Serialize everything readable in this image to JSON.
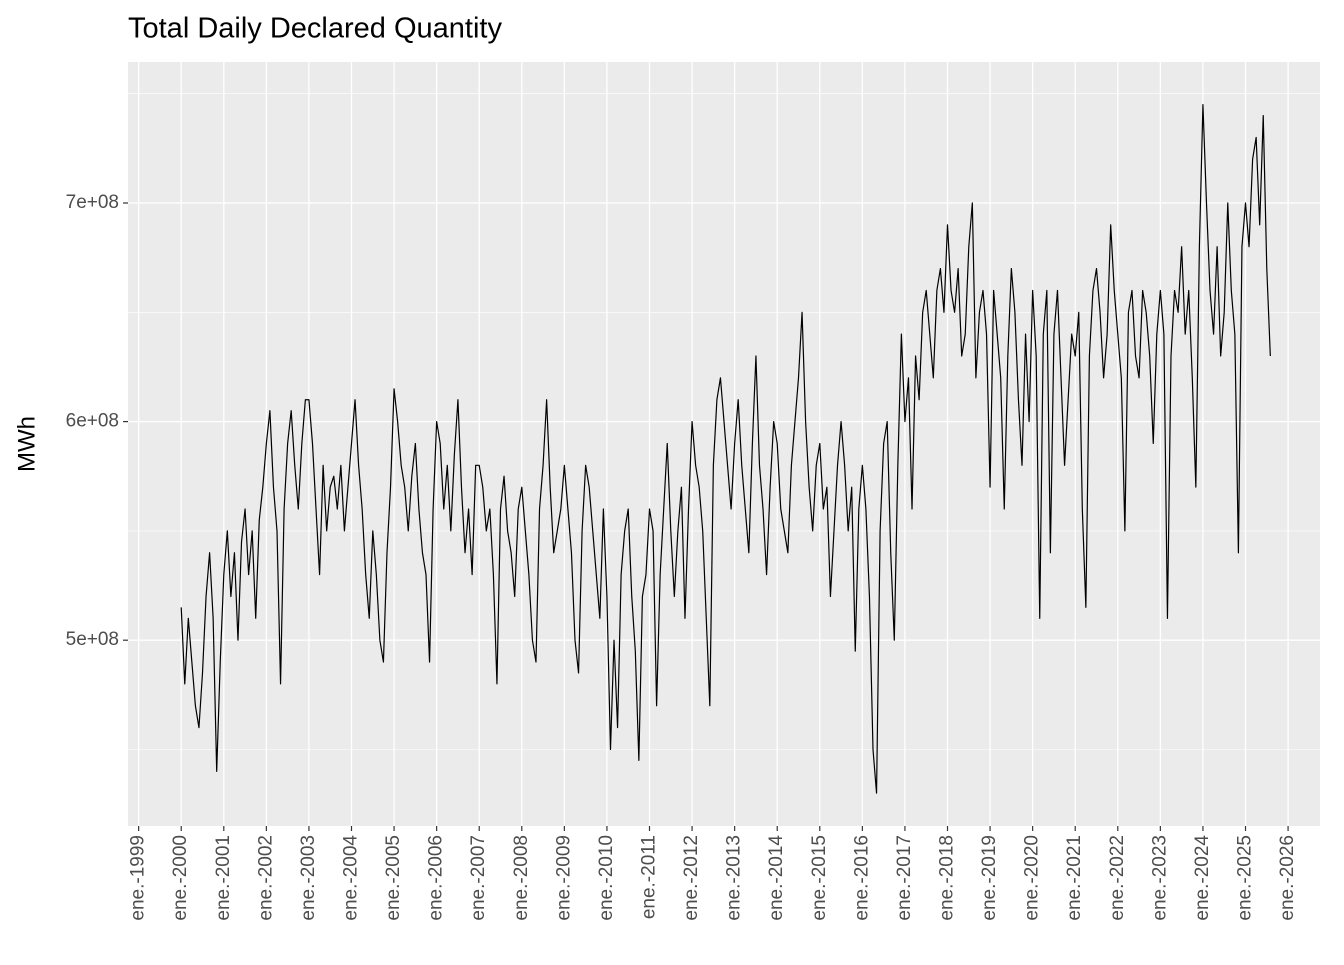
{
  "chart_data": {
    "type": "line",
    "title": "Total Daily Declared Quantity",
    "y_label": "MWh",
    "color": "#000000",
    "grid": true,
    "xlim": [
      "1998-10",
      "2026-10"
    ],
    "xticks": [
      {
        "value": "1999-01",
        "label": "ene.-1999"
      },
      {
        "value": "2000-01",
        "label": "ene.-2000"
      },
      {
        "value": "2001-01",
        "label": "ene.-2001"
      },
      {
        "value": "2002-01",
        "label": "ene.-2002"
      },
      {
        "value": "2003-01",
        "label": "ene.-2003"
      },
      {
        "value": "2004-01",
        "label": "ene.-2004"
      },
      {
        "value": "2005-01",
        "label": "ene.-2005"
      },
      {
        "value": "2006-01",
        "label": "ene.-2006"
      },
      {
        "value": "2007-01",
        "label": "ene.-2007"
      },
      {
        "value": "2008-01",
        "label": "ene.-2008"
      },
      {
        "value": "2009-01",
        "label": "ene.-2009"
      },
      {
        "value": "2010-01",
        "label": "ene.-2010"
      },
      {
        "value": "2011-01",
        "label": "ene.-2011"
      },
      {
        "value": "2012-01",
        "label": "ene.-2012"
      },
      {
        "value": "2013-01",
        "label": "ene.-2013"
      },
      {
        "value": "2014-01",
        "label": "ene.-2014"
      },
      {
        "value": "2015-01",
        "label": "ene.-2015"
      },
      {
        "value": "2016-01",
        "label": "ene.-2016"
      },
      {
        "value": "2017-01",
        "label": "ene.-2017"
      },
      {
        "value": "2018-01",
        "label": "ene.-2018"
      },
      {
        "value": "2019-01",
        "label": "ene.-2019"
      },
      {
        "value": "2020-01",
        "label": "ene.-2020"
      },
      {
        "value": "2021-01",
        "label": "ene.-2021"
      },
      {
        "value": "2022-01",
        "label": "ene.-2022"
      },
      {
        "value": "2023-01",
        "label": "ene.-2023"
      },
      {
        "value": "2024-01",
        "label": "ene.-2024"
      },
      {
        "value": "2025-01",
        "label": "ene.-2025"
      },
      {
        "value": "2026-01",
        "label": "ene.-2026"
      }
    ],
    "ylim": [
      415000000.0,
      764500000.0
    ],
    "yticks": [
      {
        "value": 500000000.0,
        "label": "5e+08"
      },
      {
        "value": 600000000.0,
        "label": "6e+08"
      },
      {
        "value": 700000000.0,
        "label": "7e+08"
      }
    ],
    "yminor": [
      450000000.0,
      550000000.0,
      650000000.0,
      750000000.0
    ],
    "x": [
      "2000-01",
      "2000-02",
      "2000-03",
      "2000-04",
      "2000-05",
      "2000-06",
      "2000-07",
      "2000-08",
      "2000-09",
      "2000-10",
      "2000-11",
      "2000-12",
      "2001-01",
      "2001-02",
      "2001-03",
      "2001-04",
      "2001-05",
      "2001-06",
      "2001-07",
      "2001-08",
      "2001-09",
      "2001-10",
      "2001-11",
      "2001-12",
      "2002-01",
      "2002-02",
      "2002-03",
      "2002-04",
      "2002-05",
      "2002-06",
      "2002-07",
      "2002-08",
      "2002-09",
      "2002-10",
      "2002-11",
      "2002-12",
      "2003-01",
      "2003-02",
      "2003-03",
      "2003-04",
      "2003-05",
      "2003-06",
      "2003-07",
      "2003-08",
      "2003-09",
      "2003-10",
      "2003-11",
      "2003-12",
      "2004-01",
      "2004-02",
      "2004-03",
      "2004-04",
      "2004-05",
      "2004-06",
      "2004-07",
      "2004-08",
      "2004-09",
      "2004-10",
      "2004-11",
      "2004-12",
      "2005-01",
      "2005-02",
      "2005-03",
      "2005-04",
      "2005-05",
      "2005-06",
      "2005-07",
      "2005-08",
      "2005-09",
      "2005-10",
      "2005-11",
      "2005-12",
      "2006-01",
      "2006-02",
      "2006-03",
      "2006-04",
      "2006-05",
      "2006-06",
      "2006-07",
      "2006-08",
      "2006-09",
      "2006-10",
      "2006-11",
      "2006-12",
      "2007-01",
      "2007-02",
      "2007-03",
      "2007-04",
      "2007-05",
      "2007-06",
      "2007-07",
      "2007-08",
      "2007-09",
      "2007-10",
      "2007-11",
      "2007-12",
      "2008-01",
      "2008-02",
      "2008-03",
      "2008-04",
      "2008-05",
      "2008-06",
      "2008-07",
      "2008-08",
      "2008-09",
      "2008-10",
      "2008-11",
      "2008-12",
      "2009-01",
      "2009-02",
      "2009-03",
      "2009-04",
      "2009-05",
      "2009-06",
      "2009-07",
      "2009-08",
      "2009-09",
      "2009-10",
      "2009-11",
      "2009-12",
      "2010-01",
      "2010-02",
      "2010-03",
      "2010-04",
      "2010-05",
      "2010-06",
      "2010-07",
      "2010-08",
      "2010-09",
      "2010-10",
      "2010-11",
      "2010-12",
      "2011-01",
      "2011-02",
      "2011-03",
      "2011-04",
      "2011-05",
      "2011-06",
      "2011-07",
      "2011-08",
      "2011-09",
      "2011-10",
      "2011-11",
      "2011-12",
      "2012-01",
      "2012-02",
      "2012-03",
      "2012-04",
      "2012-05",
      "2012-06",
      "2012-07",
      "2012-08",
      "2012-09",
      "2012-10",
      "2012-11",
      "2012-12",
      "2013-01",
      "2013-02",
      "2013-03",
      "2013-04",
      "2013-05",
      "2013-06",
      "2013-07",
      "2013-08",
      "2013-09",
      "2013-10",
      "2013-11",
      "2013-12",
      "2014-01",
      "2014-02",
      "2014-03",
      "2014-04",
      "2014-05",
      "2014-06",
      "2014-07",
      "2014-08",
      "2014-09",
      "2014-10",
      "2014-11",
      "2014-12",
      "2015-01",
      "2015-02",
      "2015-03",
      "2015-04",
      "2015-05",
      "2015-06",
      "2015-07",
      "2015-08",
      "2015-09",
      "2015-10",
      "2015-11",
      "2015-12",
      "2016-01",
      "2016-02",
      "2016-03",
      "2016-04",
      "2016-05",
      "2016-06",
      "2016-07",
      "2016-08",
      "2016-09",
      "2016-10",
      "2016-11",
      "2016-12",
      "2017-01",
      "2017-02",
      "2017-03",
      "2017-04",
      "2017-05",
      "2017-06",
      "2017-07",
      "2017-08",
      "2017-09",
      "2017-10",
      "2017-11",
      "2017-12",
      "2018-01",
      "2018-02",
      "2018-03",
      "2018-04",
      "2018-05",
      "2018-06",
      "2018-07",
      "2018-08",
      "2018-09",
      "2018-10",
      "2018-11",
      "2018-12",
      "2019-01",
      "2019-02",
      "2019-03",
      "2019-04",
      "2019-05",
      "2019-06",
      "2019-07",
      "2019-08",
      "2019-09",
      "2019-10",
      "2019-11",
      "2019-12",
      "2020-01",
      "2020-02",
      "2020-03",
      "2020-04",
      "2020-05",
      "2020-06",
      "2020-07",
      "2020-08",
      "2020-09",
      "2020-10",
      "2020-11",
      "2020-12",
      "2021-01",
      "2021-02",
      "2021-03",
      "2021-04",
      "2021-05",
      "2021-06",
      "2021-07",
      "2021-08",
      "2021-09",
      "2021-10",
      "2021-11",
      "2021-12",
      "2022-01",
      "2022-02",
      "2022-03",
      "2022-04",
      "2022-05",
      "2022-06",
      "2022-07",
      "2022-08",
      "2022-09",
      "2022-10",
      "2022-11",
      "2022-12",
      "2023-01",
      "2023-02",
      "2023-03",
      "2023-04",
      "2023-05",
      "2023-06",
      "2023-07",
      "2023-08",
      "2023-09",
      "2023-10",
      "2023-11",
      "2023-12",
      "2024-01",
      "2024-02",
      "2024-03",
      "2024-04",
      "2024-05",
      "2024-06",
      "2024-07",
      "2024-08",
      "2024-09",
      "2024-10",
      "2024-11",
      "2024-12",
      "2025-01",
      "2025-02",
      "2025-03",
      "2025-04",
      "2025-05",
      "2025-06",
      "2025-07",
      "2025-08"
    ],
    "values": [
      515000000.0,
      480000000.0,
      510000000.0,
      490000000.0,
      470000000.0,
      460000000.0,
      485000000.0,
      520000000.0,
      540000000.0,
      510000000.0,
      440000000.0,
      490000000.0,
      530000000.0,
      550000000.0,
      520000000.0,
      540000000.0,
      500000000.0,
      545000000.0,
      560000000.0,
      530000000.0,
      550000000.0,
      510000000.0,
      555000000.0,
      570000000.0,
      590000000.0,
      605000000.0,
      570000000.0,
      550000000.0,
      480000000.0,
      560000000.0,
      590000000.0,
      605000000.0,
      580000000.0,
      560000000.0,
      590000000.0,
      610000000.0,
      610000000.0,
      590000000.0,
      560000000.0,
      530000000.0,
      580000000.0,
      550000000.0,
      570000000.0,
      575000000.0,
      560000000.0,
      580000000.0,
      550000000.0,
      570000000.0,
      590000000.0,
      610000000.0,
      580000000.0,
      560000000.0,
      530000000.0,
      510000000.0,
      550000000.0,
      530000000.0,
      500000000.0,
      490000000.0,
      540000000.0,
      570000000.0,
      615000000.0,
      600000000.0,
      580000000.0,
      570000000.0,
      550000000.0,
      575000000.0,
      590000000.0,
      560000000.0,
      540000000.0,
      530000000.0,
      490000000.0,
      560000000.0,
      600000000.0,
      590000000.0,
      560000000.0,
      580000000.0,
      550000000.0,
      585000000.0,
      610000000.0,
      570000000.0,
      540000000.0,
      560000000.0,
      530000000.0,
      580000000.0,
      580000000.0,
      570000000.0,
      550000000.0,
      560000000.0,
      530000000.0,
      480000000.0,
      560000000.0,
      575000000.0,
      550000000.0,
      540000000.0,
      520000000.0,
      560000000.0,
      570000000.0,
      550000000.0,
      530000000.0,
      500000000.0,
      490000000.0,
      560000000.0,
      580000000.0,
      610000000.0,
      570000000.0,
      540000000.0,
      550000000.0,
      560000000.0,
      580000000.0,
      560000000.0,
      540000000.0,
      500000000.0,
      485000000.0,
      550000000.0,
      580000000.0,
      570000000.0,
      550000000.0,
      530000000.0,
      510000000.0,
      560000000.0,
      520000000.0,
      450000000.0,
      500000000.0,
      460000000.0,
      530000000.0,
      550000000.0,
      560000000.0,
      520000000.0,
      495000000.0,
      445000000.0,
      520000000.0,
      530000000.0,
      560000000.0,
      550000000.0,
      470000000.0,
      530000000.0,
      560000000.0,
      590000000.0,
      550000000.0,
      520000000.0,
      550000000.0,
      570000000.0,
      510000000.0,
      560000000.0,
      600000000.0,
      580000000.0,
      570000000.0,
      550000000.0,
      510000000.0,
      470000000.0,
      580000000.0,
      610000000.0,
      620000000.0,
      600000000.0,
      580000000.0,
      560000000.0,
      590000000.0,
      610000000.0,
      580000000.0,
      560000000.0,
      540000000.0,
      590000000.0,
      630000000.0,
      580000000.0,
      560000000.0,
      530000000.0,
      570000000.0,
      600000000.0,
      590000000.0,
      560000000.0,
      550000000.0,
      540000000.0,
      580000000.0,
      600000000.0,
      620000000.0,
      650000000.0,
      600000000.0,
      570000000.0,
      550000000.0,
      580000000.0,
      590000000.0,
      560000000.0,
      570000000.0,
      520000000.0,
      550000000.0,
      580000000.0,
      600000000.0,
      580000000.0,
      550000000.0,
      570000000.0,
      495000000.0,
      560000000.0,
      580000000.0,
      560000000.0,
      520000000.0,
      450000000.0,
      430000000.0,
      550000000.0,
      590000000.0,
      600000000.0,
      540000000.0,
      500000000.0,
      580000000.0,
      640000000.0,
      600000000.0,
      620000000.0,
      560000000.0,
      630000000.0,
      610000000.0,
      650000000.0,
      660000000.0,
      640000000.0,
      620000000.0,
      660000000.0,
      670000000.0,
      650000000.0,
      690000000.0,
      660000000.0,
      650000000.0,
      670000000.0,
      630000000.0,
      640000000.0,
      680000000.0,
      700000000.0,
      620000000.0,
      650000000.0,
      660000000.0,
      640000000.0,
      570000000.0,
      660000000.0,
      640000000.0,
      620000000.0,
      560000000.0,
      630000000.0,
      670000000.0,
      650000000.0,
      610000000.0,
      580000000.0,
      640000000.0,
      600000000.0,
      660000000.0,
      630000000.0,
      510000000.0,
      640000000.0,
      660000000.0,
      540000000.0,
      640000000.0,
      660000000.0,
      620000000.0,
      580000000.0,
      610000000.0,
      640000000.0,
      630000000.0,
      650000000.0,
      560000000.0,
      515000000.0,
      630000000.0,
      660000000.0,
      670000000.0,
      650000000.0,
      620000000.0,
      640000000.0,
      690000000.0,
      660000000.0,
      640000000.0,
      620000000.0,
      550000000.0,
      650000000.0,
      660000000.0,
      630000000.0,
      620000000.0,
      660000000.0,
      650000000.0,
      630000000.0,
      590000000.0,
      640000000.0,
      660000000.0,
      640000000.0,
      510000000.0,
      630000000.0,
      660000000.0,
      650000000.0,
      680000000.0,
      640000000.0,
      660000000.0,
      620000000.0,
      570000000.0,
      680000000.0,
      745000000.0,
      700000000.0,
      660000000.0,
      640000000.0,
      680000000.0,
      630000000.0,
      650000000.0,
      700000000.0,
      660000000.0,
      640000000.0,
      540000000.0,
      680000000.0,
      700000000.0,
      680000000.0,
      720000000.0,
      730000000.0,
      690000000.0,
      740000000.0,
      670000000.0,
      630000000.0
    ]
  }
}
